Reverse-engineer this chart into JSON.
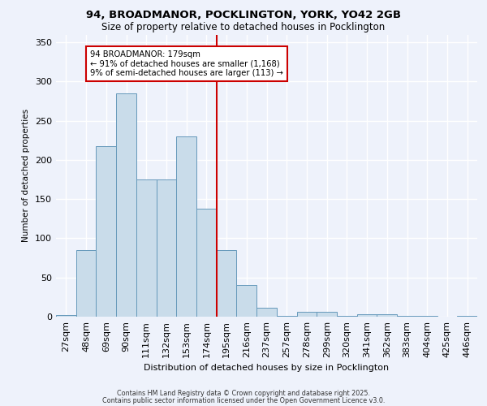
{
  "title_line1": "94, BROADMANOR, POCKLINGTON, YORK, YO42 2GB",
  "title_line2": "Size of property relative to detached houses in Pocklington",
  "xlabel": "Distribution of detached houses by size in Pocklington",
  "ylabel": "Number of detached properties",
  "bar_labels": [
    "27sqm",
    "48sqm",
    "69sqm",
    "90sqm",
    "111sqm",
    "132sqm",
    "153sqm",
    "174sqm",
    "195sqm",
    "216sqm",
    "237sqm",
    "257sqm",
    "278sqm",
    "299sqm",
    "320sqm",
    "341sqm",
    "362sqm",
    "383sqm",
    "404sqm",
    "425sqm",
    "446sqm"
  ],
  "bar_heights": [
    2,
    85,
    218,
    285,
    175,
    175,
    230,
    138,
    85,
    40,
    11,
    1,
    6,
    6,
    1,
    3,
    3,
    1,
    1,
    0,
    1
  ],
  "property_line_index": 7,
  "annotation_text": "94 BROADMANOR: 179sqm\n← 91% of detached houses are smaller (1,168)\n9% of semi-detached houses are larger (113) →",
  "bar_color": "#c9dcea",
  "bar_edge_color": "#6699bb",
  "line_color": "#cc0000",
  "annotation_box_edgecolor": "#cc0000",
  "background_color": "#eef2fb",
  "grid_color": "#ffffff",
  "ylim": [
    0,
    360
  ],
  "yticks": [
    0,
    50,
    100,
    150,
    200,
    250,
    300,
    350
  ],
  "footer_line1": "Contains HM Land Registry data © Crown copyright and database right 2025.",
  "footer_line2": "Contains public sector information licensed under the Open Government Licence v3.0."
}
